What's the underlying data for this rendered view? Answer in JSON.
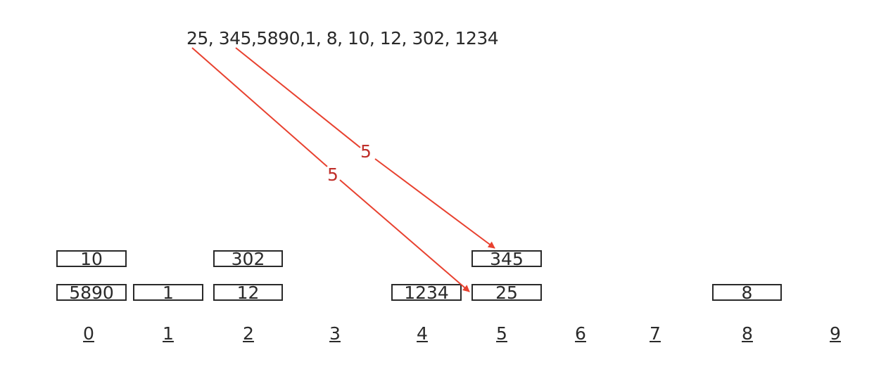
{
  "sequence_text": "25, 345,5890,1, 8, 10, 12, 302, 1234",
  "buckets": [
    {
      "index_label": "0",
      "bottom": "5890",
      "top": "10"
    },
    {
      "index_label": "1",
      "bottom": "1",
      "top": ""
    },
    {
      "index_label": "2",
      "bottom": "12",
      "top": "302"
    },
    {
      "index_label": "3",
      "bottom": "",
      "top": ""
    },
    {
      "index_label": "4",
      "bottom": "1234",
      "top": ""
    },
    {
      "index_label": "5",
      "bottom": "25",
      "top": "345"
    },
    {
      "index_label": "6",
      "bottom": "",
      "top": ""
    },
    {
      "index_label": "7",
      "bottom": "",
      "top": ""
    },
    {
      "index_label": "8",
      "bottom": "8",
      "top": ""
    },
    {
      "index_label": "9",
      "bottom": "",
      "top": ""
    }
  ],
  "arrows": [
    {
      "from": "345",
      "to": "345",
      "label": "5"
    },
    {
      "from": "25",
      "to": "25",
      "label": "5"
    }
  ],
  "colors": {
    "arrow": "#e8412f",
    "arrow_label": "#c0302b",
    "box_border": "#2a2a2a"
  }
}
